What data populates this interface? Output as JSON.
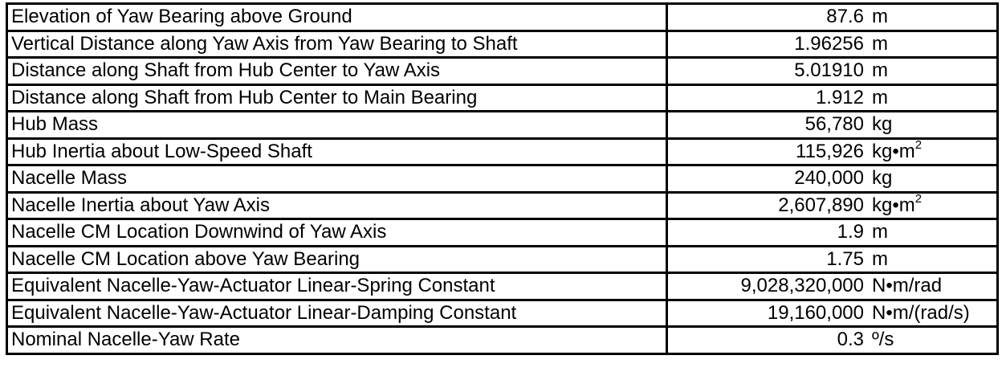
{
  "rows": [
    {
      "property": "Elevation of Yaw Bearing above Ground",
      "value": "87.6",
      "unit": "m",
      "sup": ""
    },
    {
      "property": "Vertical Distance along Yaw Axis from Yaw Bearing to Shaft",
      "value": "1.96256",
      "unit": "m",
      "sup": ""
    },
    {
      "property": "Distance along Shaft from Hub Center to Yaw Axis",
      "value": "5.01910",
      "unit": "m",
      "sup": ""
    },
    {
      "property": "Distance along Shaft from Hub Center to Main Bearing",
      "value": "1.912",
      "unit": "m",
      "sup": ""
    },
    {
      "property": "Hub Mass",
      "value": "56,780",
      "unit": "kg",
      "sup": ""
    },
    {
      "property": "Hub Inertia about Low-Speed Shaft",
      "value": "115,926",
      "unit": "kg•m",
      "sup": "2"
    },
    {
      "property": "Nacelle Mass",
      "value": "240,000",
      "unit": "kg",
      "sup": ""
    },
    {
      "property": "Nacelle Inertia about Yaw Axis",
      "value": "2,607,890",
      "unit": "kg•m",
      "sup": "2"
    },
    {
      "property": "Nacelle CM Location Downwind of Yaw Axis",
      "value": "1.9",
      "unit": "m",
      "sup": ""
    },
    {
      "property": "Nacelle CM Location above Yaw Bearing",
      "value": "1.75",
      "unit": "m",
      "sup": ""
    },
    {
      "property": "Equivalent Nacelle-Yaw-Actuator Linear-Spring Constant",
      "value": "9,028,320,000",
      "unit": "N•m/rad",
      "sup": ""
    },
    {
      "property": "Equivalent Nacelle-Yaw-Actuator Linear-Damping Constant",
      "value": "19,160,000",
      "unit": "N•m/(rad/s)",
      "sup": ""
    },
    {
      "property": "Nominal Nacelle-Yaw Rate",
      "value": "0.3",
      "unit": "º/s",
      "sup": ""
    }
  ]
}
